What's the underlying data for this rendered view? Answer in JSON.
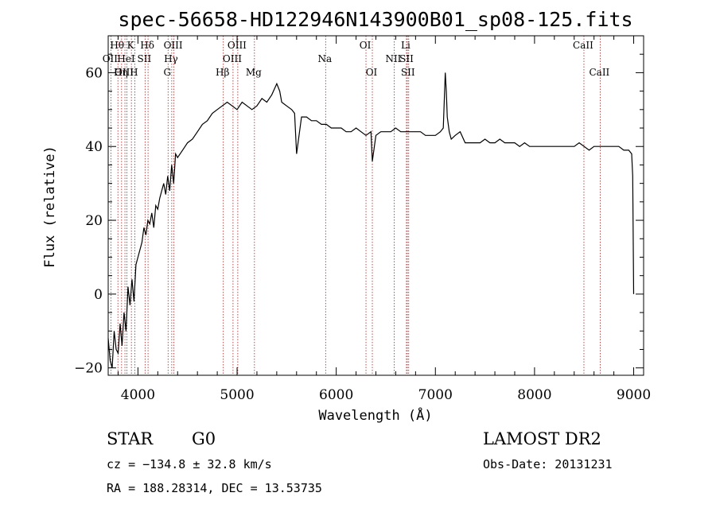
{
  "chart_data": {
    "type": "line",
    "title": "spec-56658-HD122946N143900B01_sp08-125.fits",
    "xlabel": "Wavelength (Å)",
    "ylabel": "Flux (relative)",
    "xlim": [
      3700,
      9100
    ],
    "ylim": [
      -22,
      70
    ],
    "x_ticks": [
      4000,
      5000,
      6000,
      7000,
      8000,
      9000
    ],
    "y_ticks": [
      -20,
      0,
      20,
      40,
      60
    ],
    "x_tick_labels": [
      "4000",
      "5000",
      "6000",
      "7000",
      "8000",
      "9000"
    ],
    "y_tick_labels": [
      "−20",
      "0",
      "20",
      "40",
      "60"
    ],
    "spectral_lines": [
      {
        "label": "Hθ",
        "wavelength": 3798,
        "row": 0
      },
      {
        "label": "OII",
        "wavelength": 3727,
        "row": 1
      },
      {
        "label": "OIII",
        "wavelength": 3869,
        "row": 2
      },
      {
        "label": "K",
        "wavelength": 3934,
        "row": 0
      },
      {
        "label": "HeI",
        "wavelength": 3889,
        "row": 1
      },
      {
        "label": "Hη",
        "wavelength": 3835,
        "row": 2
      },
      {
        "label": "Hδ",
        "wavelength": 4102,
        "row": 0
      },
      {
        "label": "SII",
        "wavelength": 4072,
        "row": 1
      },
      {
        "label": "H",
        "wavelength": 3968,
        "row": 2
      },
      {
        "label": "OIII",
        "wavelength": 4363,
        "row": 0
      },
      {
        "label": "Hγ",
        "wavelength": 4341,
        "row": 1
      },
      {
        "label": "G",
        "wavelength": 4304,
        "row": 2
      },
      {
        "label": "OIII",
        "wavelength": 5007,
        "row": 0
      },
      {
        "label": "OIII",
        "wavelength": 4959,
        "row": 1
      },
      {
        "label": "Hβ",
        "wavelength": 4861,
        "row": 2
      },
      {
        "label": "Mg",
        "wavelength": 5175,
        "row": 2
      },
      {
        "label": "Na",
        "wavelength": 5893,
        "row": 1
      },
      {
        "label": "OI",
        "wavelength": 6300,
        "row": 0
      },
      {
        "label": "OI",
        "wavelength": 6364,
        "row": 2
      },
      {
        "label": "Li",
        "wavelength": 6708,
        "row": 0
      },
      {
        "label": "NII",
        "wavelength": 6584,
        "row": 1
      },
      {
        "label": "SII",
        "wavelength": 6717,
        "row": 1
      },
      {
        "label": "SII",
        "wavelength": 6731,
        "row": 2
      },
      {
        "label": "CaII",
        "wavelength": 8498,
        "row": 0
      },
      {
        "label": "CaII",
        "wavelength": 8662,
        "row": 2
      }
    ],
    "series": [
      {
        "x": [
          3700,
          3720,
          3740,
          3760,
          3780,
          3800,
          3820,
          3840,
          3860,
          3880,
          3900,
          3920,
          3940,
          3960,
          3980,
          4000,
          4020,
          4040,
          4060,
          4080,
          4100,
          4120,
          4140,
          4160,
          4180,
          4200,
          4220,
          4240,
          4260,
          4280,
          4300,
          4320,
          4340,
          4360,
          4380,
          4400,
          4450,
          4500,
          4550,
          4600,
          4650,
          4700,
          4750,
          4800,
          4850,
          4900,
          4950,
          5000,
          5050,
          5100,
          5150,
          5200,
          5250,
          5300,
          5350,
          5400,
          5430,
          5450,
          5500,
          5550,
          5580,
          5600,
          5650,
          5700,
          5750,
          5800,
          5850,
          5900,
          5950,
          6000,
          6050,
          6100,
          6150,
          6200,
          6250,
          6300,
          6350,
          6364,
          6400,
          6450,
          6500,
          6550,
          6600,
          6650,
          6700,
          6750,
          6800,
          6850,
          6900,
          6950,
          7000,
          7050,
          7080,
          7100,
          7110,
          7120,
          7140,
          7160,
          7200,
          7250,
          7300,
          7350,
          7400,
          7450,
          7500,
          7550,
          7600,
          7650,
          7700,
          7750,
          7800,
          7850,
          7900,
          7950,
          8000,
          8050,
          8100,
          8150,
          8200,
          8250,
          8300,
          8350,
          8400,
          8450,
          8500,
          8550,
          8600,
          8650,
          8700,
          8750,
          8800,
          8850,
          8900,
          8950,
          8980,
          8990,
          9000
        ],
        "y": [
          -12,
          -18,
          -20,
          -10,
          -15,
          -16,
          -8,
          -14,
          -5,
          -10,
          2,
          -3,
          4,
          -2,
          8,
          10,
          12,
          14,
          18,
          16,
          20,
          19,
          22,
          18,
          24,
          23,
          26,
          28,
          30,
          27,
          32,
          28,
          35,
          30,
          38,
          37,
          39,
          41,
          42,
          44,
          46,
          47,
          49,
          50,
          51,
          52,
          51,
          50,
          52,
          51,
          50,
          51,
          53,
          52,
          54,
          57,
          55,
          52,
          51,
          50,
          49,
          38,
          48,
          48,
          47,
          47,
          46,
          46,
          45,
          45,
          45,
          44,
          44,
          45,
          44,
          43,
          44,
          36,
          43,
          44,
          44,
          44,
          45,
          44,
          44,
          44,
          44,
          44,
          43,
          43,
          43,
          44,
          45,
          60,
          55,
          48,
          44,
          42,
          43,
          44,
          41,
          41,
          41,
          41,
          42,
          41,
          41,
          42,
          41,
          41,
          41,
          40,
          41,
          40,
          40,
          40,
          40,
          40,
          40,
          40,
          40,
          40,
          40,
          41,
          40,
          39,
          40,
          40,
          40,
          40,
          40,
          40,
          39,
          39,
          38,
          32,
          0
        ]
      }
    ]
  },
  "info": {
    "object_type": "STAR",
    "subclass": "G0",
    "survey": "LAMOST DR2",
    "redshift_text": "cz = −134.8 ± 32.8 km/s",
    "obs_date": "Obs-Date: 20131231",
    "coords": "RA = 188.28314, DEC =  13.53735"
  },
  "colors": {
    "spectrum": "#000000",
    "line_markers": "#a82020",
    "axes": "#000000",
    "background": "#ffffff"
  }
}
